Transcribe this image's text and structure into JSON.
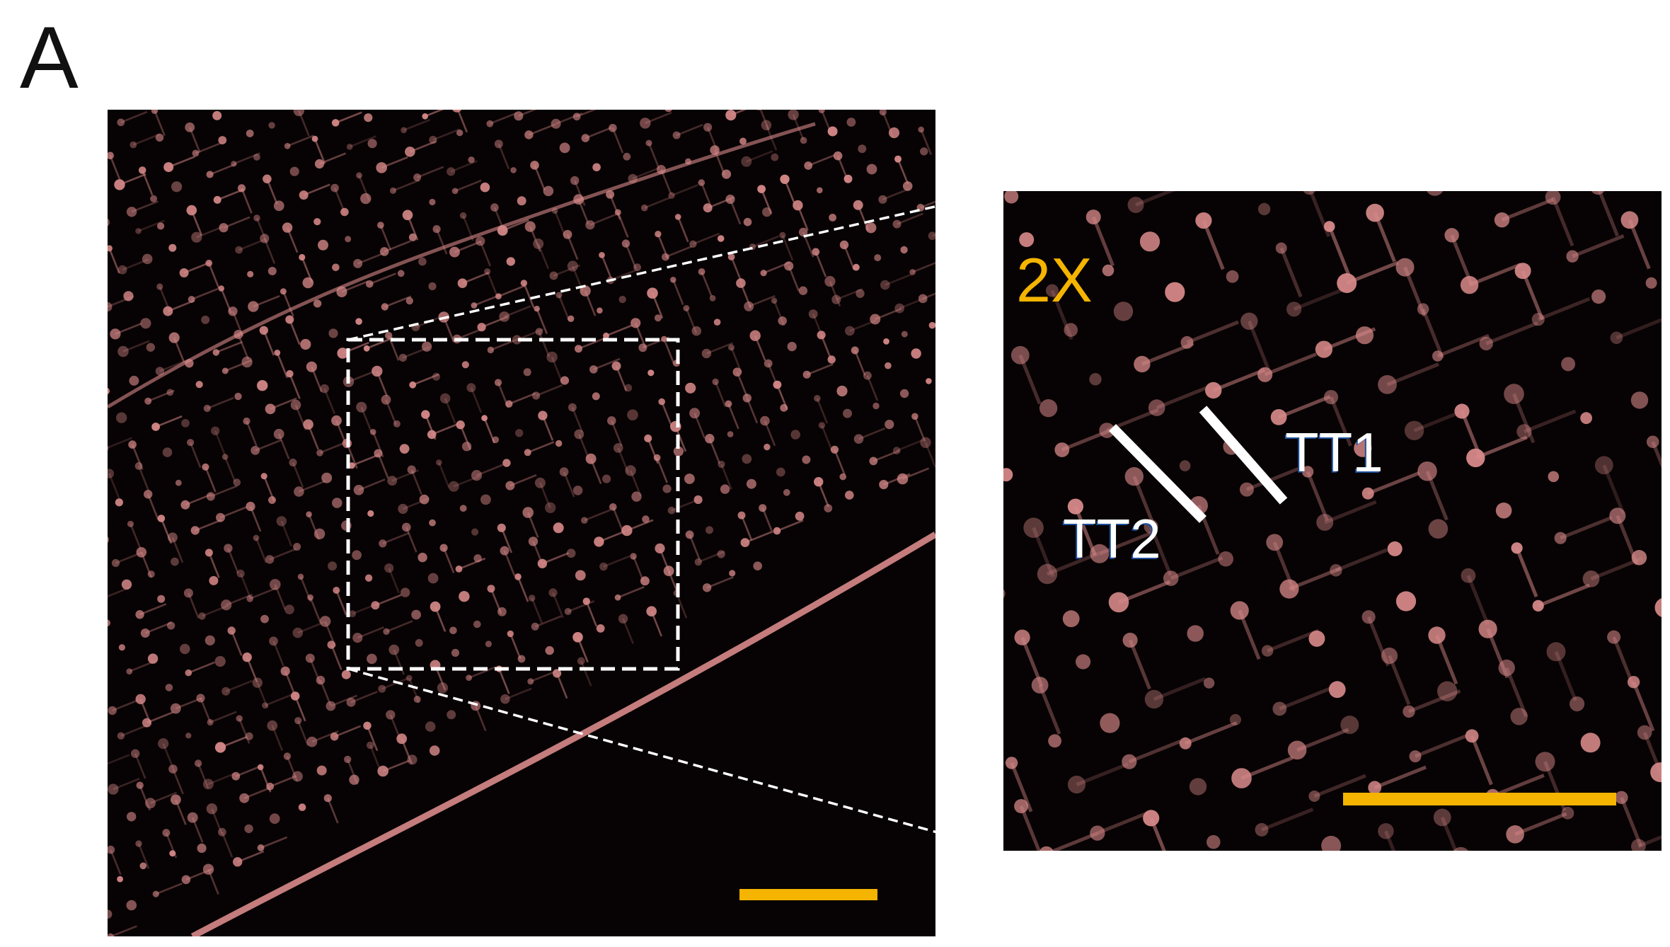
{
  "figure": {
    "panel_label": "A",
    "inset": {
      "magnification_label": "2X",
      "magnification_color": "#f5b400",
      "marker_labels": [
        "TT1",
        "TT2"
      ]
    },
    "scale_bar_color": "#f5b400",
    "membrane_color": "#d98a8a",
    "background_color": "#070203"
  }
}
